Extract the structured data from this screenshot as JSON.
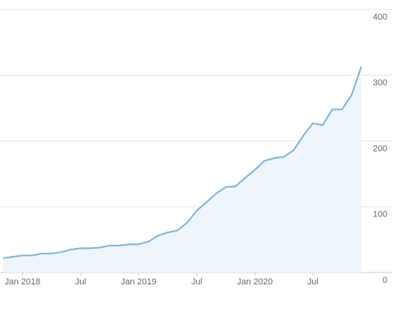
{
  "chart_data": {
    "type": "area",
    "x": [
      "2017-11",
      "2017-12",
      "2018-01",
      "2018-02",
      "2018-03",
      "2018-04",
      "2018-05",
      "2018-06",
      "2018-07",
      "2018-08",
      "2018-09",
      "2018-10",
      "2018-11",
      "2018-12",
      "2019-01",
      "2019-02",
      "2019-03",
      "2019-04",
      "2019-05",
      "2019-06",
      "2019-07",
      "2019-08",
      "2019-09",
      "2019-10",
      "2019-11",
      "2019-12",
      "2020-01",
      "2020-02",
      "2020-03",
      "2020-04",
      "2020-05",
      "2020-06",
      "2020-07",
      "2020-08",
      "2020-09",
      "2020-10",
      "2020-11",
      "2020-12"
    ],
    "values": [
      22,
      24,
      26,
      26,
      29,
      29,
      31,
      35,
      37,
      37,
      38,
      41,
      41,
      43,
      43,
      47,
      56,
      61,
      64,
      76,
      94,
      107,
      120,
      130,
      131,
      144,
      156,
      170,
      174,
      176,
      186,
      208,
      227,
      224,
      248,
      248,
      270,
      313
    ],
    "color": "#7fb3e0",
    "fill": "#eef5fb",
    "xlim": [
      "2017-11",
      "2020-12"
    ],
    "xticks": [
      {
        "value": "2018-01",
        "label": "Jan 2018"
      },
      {
        "value": "2018-07",
        "label": "Jul"
      },
      {
        "value": "2019-01",
        "label": "Jan 2019"
      },
      {
        "value": "2019-07",
        "label": "Jul"
      },
      {
        "value": "2020-01",
        "label": "Jan 2020"
      },
      {
        "value": "2020-07",
        "label": "Jul"
      }
    ],
    "ylim": [
      0,
      400
    ],
    "yticks": [
      0,
      100,
      200,
      300,
      400
    ],
    "grid": true
  }
}
